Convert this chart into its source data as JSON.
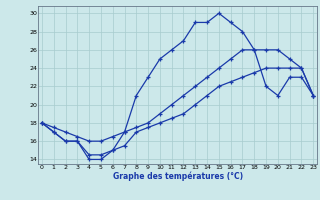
{
  "title": "Graphe des températures (°C)",
  "bg_color": "#cce8ea",
  "grid_color": "#a8ccce",
  "line_color": "#1a3aaa",
  "xlim": [
    -0.3,
    23.3
  ],
  "ylim": [
    13.5,
    30.8
  ],
  "xticks": [
    0,
    1,
    2,
    3,
    4,
    5,
    6,
    7,
    8,
    9,
    10,
    11,
    12,
    13,
    14,
    15,
    16,
    17,
    18,
    19,
    20,
    21,
    22,
    23
  ],
  "yticks": [
    14,
    16,
    18,
    20,
    22,
    24,
    26,
    28,
    30
  ],
  "curve1_x": [
    0,
    1,
    2,
    3,
    4,
    5,
    6,
    7,
    8,
    9,
    10,
    11,
    12,
    13,
    14,
    15,
    16,
    17,
    18,
    19,
    20,
    21,
    22,
    23
  ],
  "curve1_y": [
    18,
    17,
    16,
    16,
    14,
    14,
    15,
    17,
    21,
    23,
    25,
    26,
    27,
    29,
    29,
    30,
    29,
    28,
    26,
    22,
    21,
    23,
    23,
    21
  ],
  "curve2_x": [
    0,
    1,
    2,
    3,
    4,
    5,
    6,
    7,
    8,
    9,
    10,
    11,
    12,
    13,
    14,
    15,
    16,
    17,
    18,
    19,
    20,
    21,
    22,
    23
  ],
  "curve2_y": [
    18,
    17.5,
    17,
    16.5,
    16,
    16,
    16.5,
    17,
    17.5,
    18,
    19,
    20,
    21,
    22,
    23,
    24,
    25,
    26,
    26,
    26,
    26,
    25,
    24,
    21
  ],
  "curve3_x": [
    0,
    1,
    2,
    3,
    4,
    5,
    6,
    7,
    8,
    9,
    10,
    11,
    12,
    13,
    14,
    15,
    16,
    17,
    18,
    19,
    20,
    21,
    22,
    23
  ],
  "curve3_y": [
    18,
    17,
    16,
    16,
    14.5,
    14.5,
    15,
    15.5,
    17,
    17.5,
    18,
    18.5,
    19,
    20,
    21,
    22,
    22.5,
    23,
    23.5,
    24,
    24,
    24,
    24,
    21
  ]
}
